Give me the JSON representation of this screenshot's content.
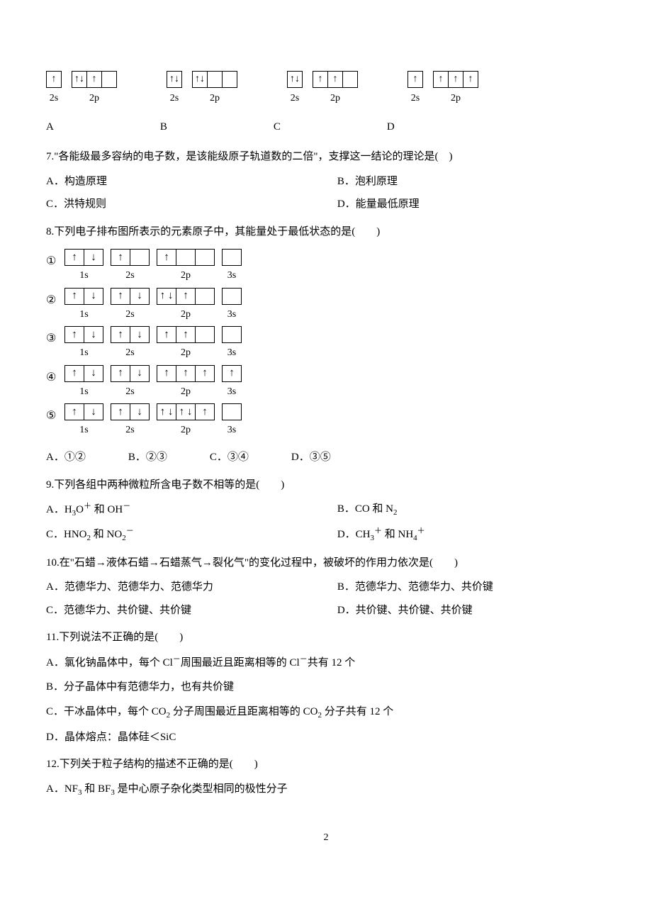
{
  "q6": {
    "options": [
      {
        "letter": "A",
        "s2": "↑",
        "p": [
          "↑↓",
          "↑",
          ""
        ]
      },
      {
        "letter": "B",
        "s2": "↑↓",
        "p": [
          "↑↓",
          "",
          ""
        ]
      },
      {
        "letter": "C",
        "s2": "↑↓",
        "p": [
          "↑",
          "↑",
          ""
        ]
      },
      {
        "letter": "D",
        "s2": "↑",
        "p": [
          "↑",
          "↑",
          "↑"
        ]
      }
    ],
    "label_2s": "2s",
    "label_2p": "2p"
  },
  "q7": {
    "text": "7.\"各能级最多容纳的电子数，是该能级原子轨道数的二倍\"，支撑这一结论的理论是(　)",
    "A": "A．构造原理",
    "B": "B．泡利原理",
    "C": "C．洪特规则",
    "D": "D．能量最低原理"
  },
  "q8": {
    "text": "8.下列电子排布图所表示的元素原子中，其能量处于最低状态的是(　　)",
    "rows": [
      {
        "num": "①",
        "s1": [
          "↑",
          "↓"
        ],
        "s2": [
          "↑",
          ""
        ],
        "p": [
          "↑",
          "",
          ""
        ],
        "s3": [
          ""
        ]
      },
      {
        "num": "②",
        "s1": [
          "↑",
          "↓"
        ],
        "s2": [
          "↑",
          "↓"
        ],
        "p": [
          "↑  ↓",
          "↑",
          ""
        ],
        "s3": [
          ""
        ]
      },
      {
        "num": "③",
        "s1": [
          "↑",
          "↓"
        ],
        "s2": [
          "↑",
          "↓"
        ],
        "p": [
          "↑",
          "↑",
          ""
        ],
        "s3": [
          ""
        ]
      },
      {
        "num": "④",
        "s1": [
          "↑",
          "↓"
        ],
        "s2": [
          "↑",
          "↓"
        ],
        "p": [
          "↑",
          "↑",
          "↑"
        ],
        "s3": [
          "↑"
        ]
      },
      {
        "num": "⑤",
        "s1": [
          "↑",
          "↓"
        ],
        "s2": [
          "↑",
          "↓"
        ],
        "p": [
          "↑  ↓",
          "↑  ↓",
          "↑"
        ],
        "s3": [
          ""
        ]
      }
    ],
    "label_1s": "1s",
    "label_2s": "2s",
    "label_2p": "2p",
    "label_3s": "3s",
    "A": "A．①②",
    "B": "B．②③",
    "C": "C．③④",
    "D": "D．③⑤"
  },
  "q9": {
    "text": "9.下列各组中两种微粒所含电子数不相等的是(　　)",
    "A_pre": "A．H",
    "A_s3": "3",
    "A_mid1": "O",
    "A_sup1": "＋",
    "A_mid2": " 和 OH",
    "A_sup2": "－",
    "B_pre": "B．CO 和 N",
    "B_s2": "2",
    "C_pre": "C．HNO",
    "C_s1": "2",
    "C_mid": " 和 NO",
    "C_s2": "2",
    "C_sup": "－",
    "D_pre": "D．CH",
    "D_s1": "3",
    "D_sup1": "＋",
    "D_mid": " 和 NH",
    "D_s2": "4",
    "D_sup2": "＋"
  },
  "q10": {
    "text": "10.在\"石蜡→液体石蜡→石蜡蒸气→裂化气\"的变化过程中，被破坏的作用力依次是(　　)",
    "A": "A．范德华力、范德华力、范德华力",
    "B": "B．范德华力、范德华力、共价键",
    "C": "C．范德华力、共价键、共价键",
    "D": "D．共价键、共价键、共价键"
  },
  "q11": {
    "text": "11.下列说法不正确的是(　　)",
    "A_pre": "A．氯化钠晶体中，每个 Cl",
    "A_sup1": "－",
    "A_mid": "周围最近且距离相等的 Cl",
    "A_sup2": "－",
    "A_post": "共有 12 个",
    "B": "B．分子晶体中有范德华力，也有共价键",
    "C_pre": "C．干冰晶体中，每个 CO",
    "C_s1": "2",
    "C_mid": " 分子周围最近且距离相等的 CO",
    "C_s2": "2",
    "C_post": " 分子共有 12 个",
    "D": "D．晶体熔点：晶体硅＜SiC"
  },
  "q12": {
    "text": "12.下列关于粒子结构的描述不正确的是(　　)",
    "A_pre": "A．NF",
    "A_s1": "3",
    "A_mid": " 和 BF",
    "A_s2": "3",
    "A_post": " 是中心原子杂化类型相同的极性分子"
  },
  "page": "2"
}
